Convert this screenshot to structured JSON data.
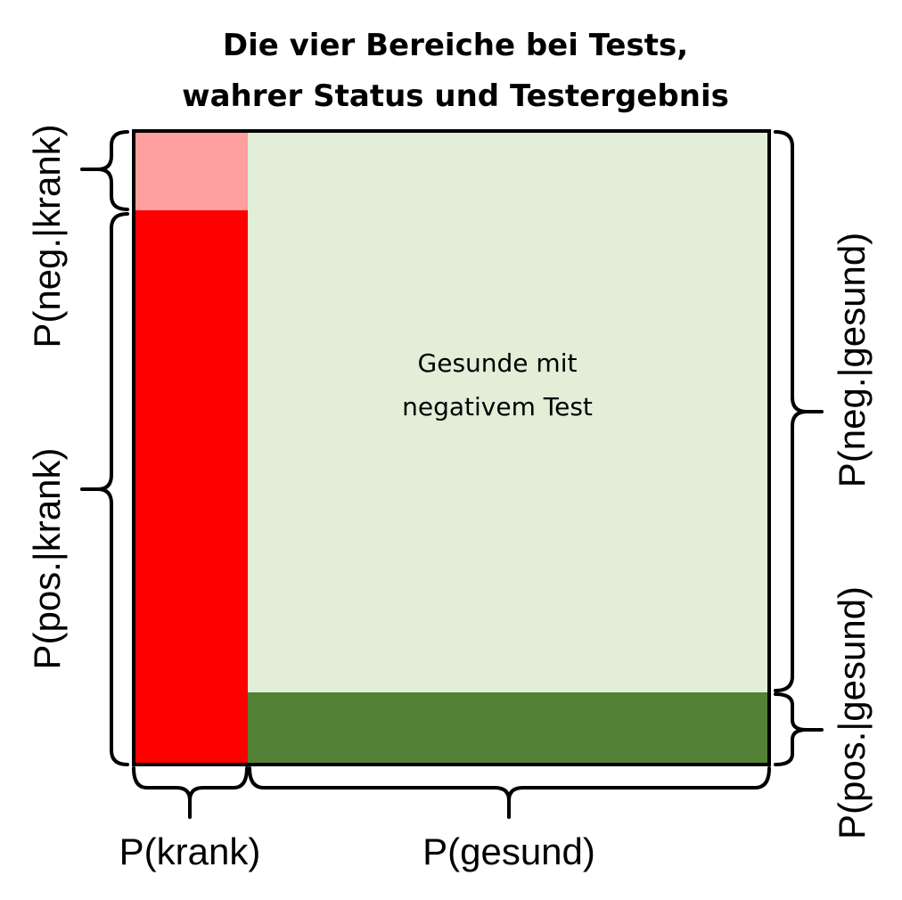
{
  "title": {
    "line1": "Die vier Bereiche bei Tests,",
    "line2": "wahrer Status und Testergebnis"
  },
  "regions": {
    "healthy_negative_line1": "Gesunde mit",
    "healthy_negative_line2": "negativem Test"
  },
  "labels": {
    "p_krank": "P(krank)",
    "p_gesund": "P(gesund)",
    "p_neg_krank": "P(neg.|krank)",
    "p_pos_krank": "P(pos.|krank)",
    "p_neg_gesund": "P(neg.|gesund)",
    "p_pos_gesund": "P(pos.|gesund)"
  },
  "colors": {
    "sick_positive": "#ff0000",
    "sick_negative": "#ff9f9f",
    "healthy_negative": "#e2eed8",
    "healthy_positive": "#538135",
    "border": "#000000"
  }
}
